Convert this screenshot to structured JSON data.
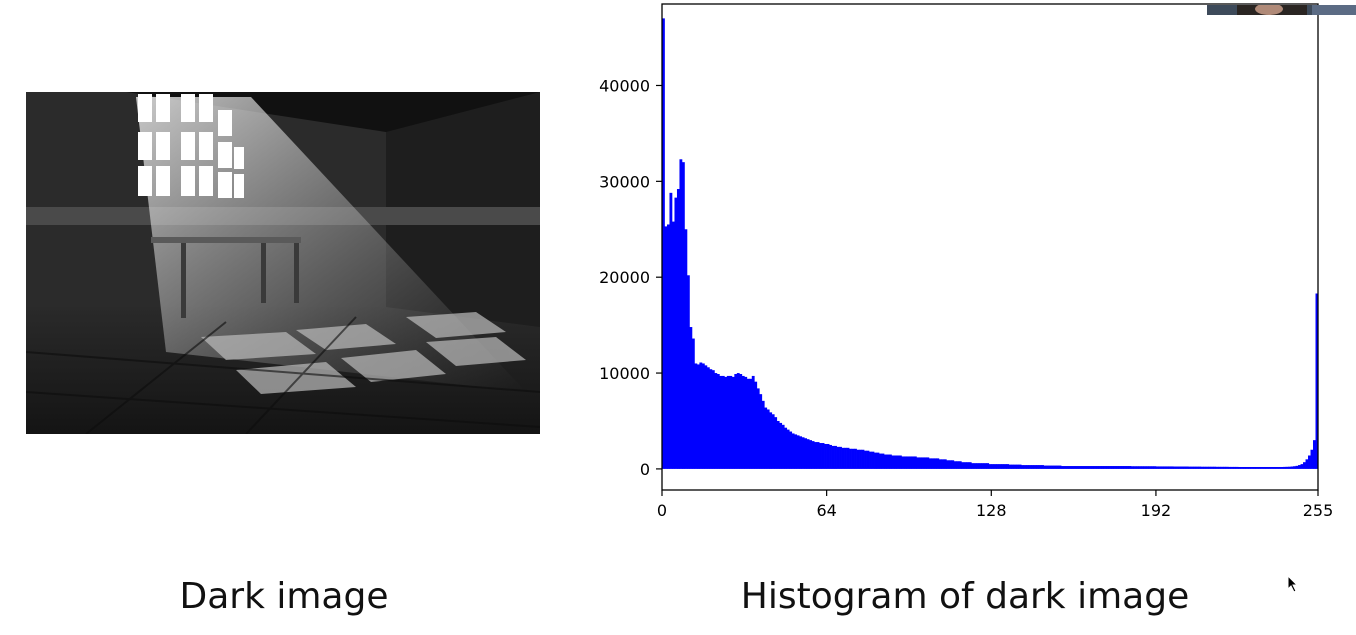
{
  "left_panel": {
    "caption": "Dark image",
    "image_description_icon": "dark-room-window-light-icon"
  },
  "right_panel": {
    "caption": "Histogram of dark image"
  },
  "chart_data": {
    "type": "bar",
    "title": "",
    "xlabel": "",
    "ylabel": "",
    "xlim": [
      0,
      255
    ],
    "ylim": [
      -2200,
      48500
    ],
    "xticks": [
      0,
      64,
      128,
      192,
      255
    ],
    "yticks": [
      0,
      10000,
      20000,
      30000,
      40000
    ],
    "grid": false,
    "bar_color": "#0000ff",
    "series": [
      {
        "values": [
          47000,
          25300,
          25500,
          28800,
          25800,
          28300,
          29200,
          32300,
          32000,
          25000,
          20200,
          14800,
          13600,
          11000,
          10900,
          11100,
          11000,
          10800,
          10600,
          10400,
          10300,
          10000,
          9900,
          9700,
          9700,
          9600,
          9700,
          9700,
          9600,
          9900,
          10000,
          9900,
          9700,
          9600,
          9400,
          9400,
          9700,
          9100,
          8400,
          7800,
          7100,
          6400,
          6200,
          5900,
          5700,
          5400,
          5000,
          4800,
          4600,
          4300,
          4100,
          3900,
          3700,
          3600,
          3500,
          3400,
          3300,
          3200,
          3100,
          3000,
          2900,
          2800,
          2800,
          2700,
          2700,
          2600,
          2600,
          2500,
          2400,
          2400,
          2300,
          2300,
          2200,
          2200,
          2200,
          2100,
          2100,
          2100,
          2000,
          2000,
          2000,
          1900,
          1900,
          1800,
          1800,
          1700,
          1700,
          1600,
          1600,
          1500,
          1500,
          1500,
          1400,
          1400,
          1400,
          1400,
          1300,
          1300,
          1300,
          1300,
          1300,
          1300,
          1200,
          1200,
          1200,
          1200,
          1200,
          1100,
          1100,
          1100,
          1100,
          1000,
          1000,
          1000,
          900,
          900,
          900,
          800,
          800,
          800,
          700,
          700,
          700,
          700,
          600,
          600,
          600,
          600,
          600,
          600,
          600,
          500,
          500,
          500,
          500,
          500,
          500,
          500,
          500,
          450,
          450,
          450,
          450,
          450,
          400,
          400,
          400,
          400,
          400,
          400,
          400,
          400,
          400,
          350,
          350,
          350,
          350,
          350,
          350,
          350,
          300,
          300,
          300,
          300,
          300,
          300,
          300,
          300,
          300,
          300,
          300,
          300,
          300,
          300,
          300,
          300,
          300,
          300,
          300,
          300,
          300,
          300,
          300,
          300,
          300,
          300,
          300,
          300,
          280,
          280,
          280,
          280,
          280,
          280,
          280,
          280,
          280,
          280,
          260,
          260,
          260,
          260,
          260,
          260,
          260,
          250,
          250,
          250,
          250,
          250,
          250,
          240,
          240,
          240,
          240,
          240,
          230,
          230,
          230,
          230,
          230,
          230,
          220,
          220,
          220,
          220,
          220,
          210,
          210,
          210,
          210,
          200,
          200,
          200,
          200,
          200,
          200,
          200,
          200,
          200,
          200,
          200,
          200,
          200,
          200,
          200,
          200,
          200,
          200,
          210,
          220,
          230,
          250,
          280,
          320,
          400,
          500,
          700,
          1000,
          1400,
          2000,
          3000,
          18300
        ]
      }
    ]
  }
}
